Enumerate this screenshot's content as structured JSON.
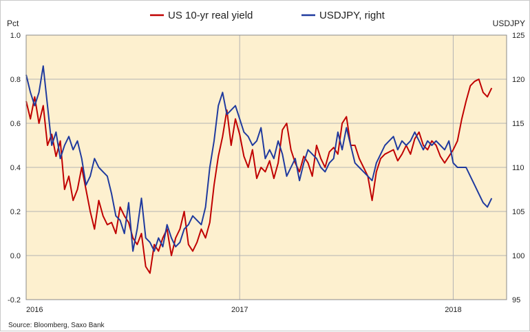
{
  "chart_data": {
    "type": "line",
    "title": "",
    "xlabel": "",
    "ylabel_left": "Pct",
    "ylabel_right": "USDJPY",
    "x_ticks": [
      "2016",
      "2017",
      "2018"
    ],
    "x_range": [
      2016.0,
      2018.25
    ],
    "ylim_left": [
      -0.2,
      1.0
    ],
    "ylim_right": [
      95,
      125
    ],
    "y_ticks_left": [
      "1.0",
      "0.8",
      "0.6",
      "0.4",
      "0.2",
      "0.0",
      "-0.2"
    ],
    "y_ticks_right": [
      "125",
      "120",
      "115",
      "110",
      "105",
      "100",
      "95"
    ],
    "grid": "vertical lines at year boundaries, horizontal lines at each y tick",
    "legend_position": "top",
    "background_color": "#fdf0cf",
    "source": "Source: Bloomberg, Saxo Bank",
    "series": [
      {
        "name": "US 10-yr real yield",
        "axis": "left",
        "color": "#c00000",
        "x": [
          2016.0,
          2016.02,
          2016.04,
          2016.06,
          2016.08,
          2016.1,
          2016.12,
          2016.14,
          2016.16,
          2016.18,
          2016.2,
          2016.22,
          2016.24,
          2016.26,
          2016.28,
          2016.3,
          2016.32,
          2016.34,
          2016.36,
          2016.38,
          2016.4,
          2016.42,
          2016.44,
          2016.46,
          2016.48,
          2016.5,
          2016.52,
          2016.54,
          2016.56,
          2016.58,
          2016.6,
          2016.62,
          2016.64,
          2016.66,
          2016.68,
          2016.7,
          2016.72,
          2016.74,
          2016.76,
          2016.78,
          2016.8,
          2016.82,
          2016.84,
          2016.86,
          2016.88,
          2016.9,
          2016.92,
          2016.94,
          2016.96,
          2016.98,
          2017.0,
          2017.02,
          2017.04,
          2017.06,
          2017.08,
          2017.1,
          2017.12,
          2017.14,
          2017.16,
          2017.18,
          2017.2,
          2017.22,
          2017.24,
          2017.26,
          2017.28,
          2017.3,
          2017.32,
          2017.34,
          2017.36,
          2017.38,
          2017.4,
          2017.42,
          2017.44,
          2017.46,
          2017.48,
          2017.5,
          2017.52,
          2017.54,
          2017.56,
          2017.58,
          2017.6,
          2017.62,
          2017.64,
          2017.66,
          2017.68,
          2017.7,
          2017.72,
          2017.74,
          2017.76,
          2017.78,
          2017.8,
          2017.82,
          2017.84,
          2017.86,
          2017.88,
          2017.9,
          2017.92,
          2017.94,
          2017.96,
          2017.98,
          2018.0,
          2018.02,
          2018.04,
          2018.06,
          2018.08,
          2018.1,
          2018.12,
          2018.14,
          2018.16,
          2018.18
        ],
        "values": [
          0.7,
          0.62,
          0.72,
          0.6,
          0.68,
          0.5,
          0.55,
          0.45,
          0.52,
          0.3,
          0.36,
          0.25,
          0.3,
          0.4,
          0.3,
          0.2,
          0.12,
          0.25,
          0.18,
          0.14,
          0.15,
          0.1,
          0.22,
          0.18,
          0.15,
          0.08,
          0.05,
          0.1,
          -0.05,
          -0.08,
          0.05,
          0.02,
          0.08,
          0.12,
          0.0,
          0.08,
          0.12,
          0.2,
          0.05,
          0.02,
          0.06,
          0.12,
          0.08,
          0.15,
          0.32,
          0.45,
          0.54,
          0.66,
          0.5,
          0.62,
          0.55,
          0.45,
          0.4,
          0.48,
          0.35,
          0.4,
          0.38,
          0.43,
          0.35,
          0.42,
          0.57,
          0.6,
          0.48,
          0.42,
          0.38,
          0.45,
          0.42,
          0.36,
          0.5,
          0.44,
          0.4,
          0.47,
          0.49,
          0.46,
          0.6,
          0.63,
          0.5,
          0.5,
          0.44,
          0.4,
          0.36,
          0.25,
          0.38,
          0.44,
          0.46,
          0.47,
          0.48,
          0.43,
          0.46,
          0.5,
          0.46,
          0.53,
          0.56,
          0.5,
          0.48,
          0.52,
          0.5,
          0.45,
          0.42,
          0.45,
          0.48,
          0.52,
          0.62,
          0.7,
          0.77,
          0.79,
          0.8,
          0.74,
          0.72,
          0.76
        ],
        "labels": []
      },
      {
        "name": "USDJPY, right",
        "axis": "right",
        "color": "#1f3a9e",
        "x": [
          2016.0,
          2016.02,
          2016.04,
          2016.06,
          2016.08,
          2016.1,
          2016.12,
          2016.14,
          2016.16,
          2016.18,
          2016.2,
          2016.22,
          2016.24,
          2016.26,
          2016.28,
          2016.3,
          2016.32,
          2016.34,
          2016.36,
          2016.38,
          2016.4,
          2016.42,
          2016.44,
          2016.46,
          2016.48,
          2016.5,
          2016.52,
          2016.54,
          2016.56,
          2016.58,
          2016.6,
          2016.62,
          2016.64,
          2016.66,
          2016.68,
          2016.7,
          2016.72,
          2016.74,
          2016.76,
          2016.78,
          2016.8,
          2016.82,
          2016.84,
          2016.86,
          2016.88,
          2016.9,
          2016.92,
          2016.94,
          2016.96,
          2016.98,
          2017.0,
          2017.02,
          2017.04,
          2017.06,
          2017.08,
          2017.1,
          2017.12,
          2017.14,
          2017.16,
          2017.18,
          2017.2,
          2017.22,
          2017.24,
          2017.26,
          2017.28,
          2017.3,
          2017.32,
          2017.34,
          2017.36,
          2017.38,
          2017.4,
          2017.42,
          2017.44,
          2017.46,
          2017.48,
          2017.5,
          2017.52,
          2017.54,
          2017.56,
          2017.58,
          2017.6,
          2017.62,
          2017.64,
          2017.66,
          2017.68,
          2017.7,
          2017.72,
          2017.74,
          2017.76,
          2017.78,
          2017.8,
          2017.82,
          2017.84,
          2017.86,
          2017.88,
          2017.9,
          2017.92,
          2017.94,
          2017.96,
          2017.98,
          2018.0,
          2018.02,
          2018.04,
          2018.06,
          2018.08,
          2018.1,
          2018.12,
          2018.14,
          2018.16,
          2018.18
        ],
        "values": [
          120.5,
          118.5,
          117.0,
          118.5,
          121.5,
          117.0,
          112.5,
          114.0,
          111.0,
          112.5,
          113.5,
          112.0,
          113.0,
          111.0,
          108.0,
          109.0,
          111.0,
          110.0,
          109.5,
          109.0,
          107.0,
          104.5,
          104.0,
          102.5,
          106.0,
          100.5,
          103.0,
          106.5,
          102.0,
          101.5,
          100.5,
          102.0,
          101.0,
          103.5,
          102.0,
          101.0,
          101.5,
          103.0,
          103.5,
          104.5,
          104.0,
          103.5,
          105.5,
          110.0,
          113.0,
          117.0,
          118.5,
          116.0,
          116.5,
          117.0,
          115.5,
          114.0,
          113.5,
          112.5,
          113.0,
          114.5,
          111.0,
          112.0,
          111.0,
          113.0,
          111.5,
          109.0,
          110.0,
          111.0,
          108.5,
          110.5,
          112.0,
          111.5,
          111.0,
          110.0,
          109.5,
          110.5,
          111.0,
          114.0,
          112.0,
          114.5,
          112.5,
          110.5,
          110.0,
          109.5,
          109.0,
          108.5,
          110.5,
          111.5,
          112.5,
          113.0,
          113.5,
          112.0,
          113.0,
          112.5,
          113.0,
          114.0,
          113.0,
          112.0,
          113.0,
          112.5,
          113.0,
          112.5,
          112.0,
          113.0,
          110.5,
          110.0,
          110.0,
          110.0,
          109.0,
          108.0,
          107.0,
          106.0,
          105.5,
          106.5
        ],
        "labels": []
      }
    ]
  }
}
